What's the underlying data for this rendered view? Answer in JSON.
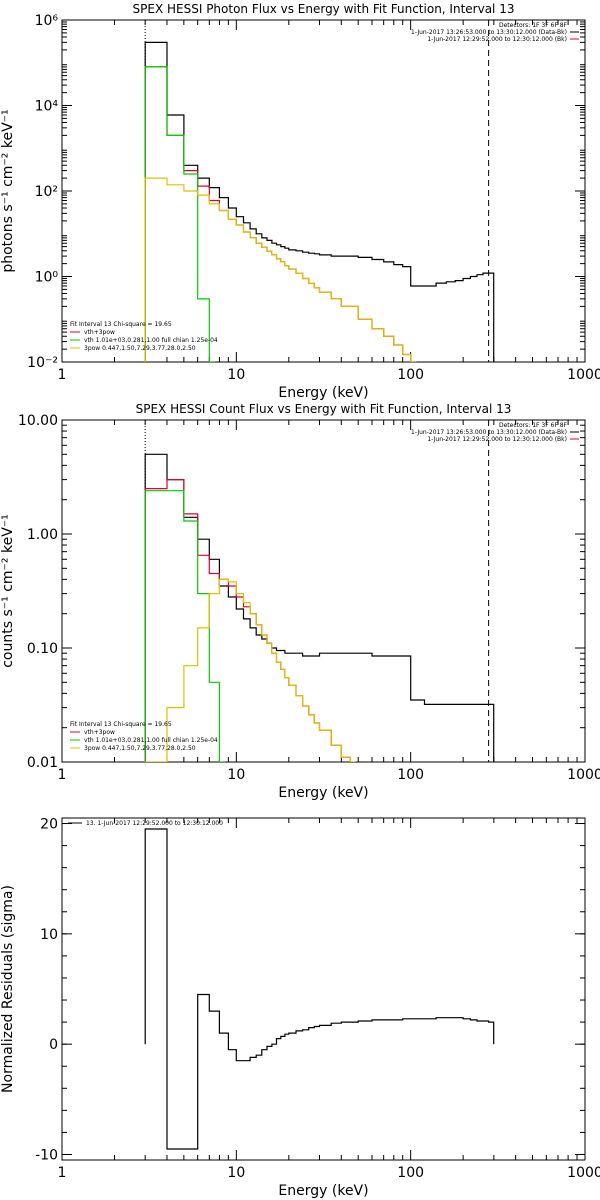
{
  "chart_data": [
    {
      "id": "photon",
      "type": "line",
      "title": "SPEX HESSI Photon Flux vs Energy with Fit Function, Interval 13",
      "xlabel": "Energy (keV)",
      "ylabel": "photons s⁻¹ cm⁻² keV⁻¹",
      "xscale": "log",
      "yscale": "log",
      "xlim": [
        1,
        1000
      ],
      "ylim": [
        0.01,
        1000000
      ],
      "xticks": [
        {
          "v": 1,
          "label": "1"
        },
        {
          "v": 10,
          "label": "10"
        },
        {
          "v": 100,
          "label": "100"
        },
        {
          "v": 1000,
          "label": "1000"
        }
      ],
      "yticks": [
        {
          "v": 0.01,
          "label": "10⁻²"
        },
        {
          "v": 1,
          "label": "10⁰"
        },
        {
          "v": 100,
          "label": "10²"
        },
        {
          "v": 10000,
          "label": "10⁴"
        },
        {
          "v": 1000000,
          "label": "10⁶"
        }
      ],
      "vlines": [
        {
          "x": 3.0,
          "style": "dotted"
        },
        {
          "x": 280,
          "style": "dashed"
        }
      ],
      "legend_top": [
        "Detectors: 1F 3F 6F 8F",
        "1-Jun-2017 13:26:53.000 to 13:30:12.000 (Data-Bk)",
        "1-Jun-2017 12:29:52.000 to 12:30:12.000 (Bk)"
      ],
      "legend_top_colors": [
        "#000000",
        "#000000",
        "#e0002e"
      ],
      "legend_bottom_header": "Fit Interval 13   Chi-square = 19.65",
      "legend_bottom": [
        {
          "label": "vth+3pow",
          "color": "#e0002e"
        },
        {
          "label": "vth 1.01e+03,0.281,1.00  full chian 1.25e-04",
          "color": "#00cc00"
        },
        {
          "label": "3pow 0.447,1.50,7.29,3.77,28.0,2.50",
          "color": "#e0c000"
        }
      ],
      "series": [
        {
          "color": "#000000",
          "x": [
            3.0,
            4.0,
            5.0,
            6.0,
            7.0,
            8.0,
            9.0,
            10,
            11,
            12,
            13,
            14,
            15,
            16,
            17,
            18,
            19,
            20,
            22,
            24,
            26,
            28,
            30,
            35,
            40,
            50,
            60,
            70,
            80,
            90,
            100,
            120,
            140,
            160,
            180,
            200,
            220,
            240,
            260,
            280
          ],
          "y": [
            300000,
            6000,
            400,
            200,
            120,
            70,
            40,
            25,
            18,
            13,
            10,
            8,
            7,
            6,
            5.5,
            5,
            4.6,
            4.2,
            4,
            3.7,
            3.5,
            3.4,
            3.2,
            3.0,
            3.0,
            2.8,
            2.5,
            2.2,
            1.9,
            1.7,
            0.6,
            0.6,
            0.7,
            0.75,
            0.8,
            0.9,
            1.0,
            1.1,
            1.2,
            1.2
          ]
        },
        {
          "color": "#e0002e",
          "x": [
            3.0,
            4.0,
            5.0,
            6.0,
            7.0,
            8.0,
            9.0,
            10,
            11,
            12,
            13,
            14,
            15,
            16,
            17,
            18,
            19,
            20,
            22,
            24,
            26,
            28,
            30,
            35,
            40,
            50,
            60,
            70,
            80,
            90,
            100
          ],
          "y": [
            80000,
            2000,
            300,
            130,
            60,
            35,
            22,
            16,
            11,
            8,
            6,
            4.8,
            3.9,
            3.2,
            2.6,
            2.2,
            1.8,
            1.5,
            1.2,
            0.9,
            0.7,
            0.55,
            0.43,
            0.3,
            0.2,
            0.1,
            0.06,
            0.04,
            0.025,
            0.015,
            0.01
          ]
        },
        {
          "color": "#00cc00",
          "x": [
            3.0,
            4.0,
            5.0,
            6.0,
            7.0
          ],
          "y": [
            80000,
            2000,
            250,
            0.3,
            0.01
          ]
        },
        {
          "color": "#e0c000",
          "x": [
            3.0,
            4.0,
            5.0,
            6.0,
            7.0,
            8.0,
            9.0,
            10,
            11,
            12,
            13,
            14,
            15,
            16,
            17,
            18,
            19,
            20,
            22,
            24,
            26,
            28,
            30,
            35,
            40,
            50,
            60,
            70,
            80,
            90,
            100
          ],
          "y": [
            200,
            140,
            100,
            80,
            50,
            35,
            22,
            16,
            11,
            8,
            6,
            4.8,
            3.9,
            3.2,
            2.6,
            2.2,
            1.8,
            1.5,
            1.2,
            0.9,
            0.7,
            0.55,
            0.43,
            0.3,
            0.2,
            0.1,
            0.06,
            0.04,
            0.025,
            0.015,
            0.01
          ]
        }
      ]
    },
    {
      "id": "count",
      "type": "line",
      "title": "SPEX HESSI Count Flux vs Energy with Fit Function, Interval 13",
      "xlabel": "Energy (keV)",
      "ylabel": "counts s⁻¹ cm⁻² keV⁻¹",
      "xscale": "log",
      "yscale": "log",
      "xlim": [
        1,
        1000
      ],
      "ylim": [
        0.01,
        10
      ],
      "xticks": [
        {
          "v": 1,
          "label": "1"
        },
        {
          "v": 10,
          "label": "10"
        },
        {
          "v": 100,
          "label": "100"
        },
        {
          "v": 1000,
          "label": "1000"
        }
      ],
      "yticks": [
        {
          "v": 0.01,
          "label": "0.01"
        },
        {
          "v": 0.1,
          "label": "0.10"
        },
        {
          "v": 1,
          "label": "1.00"
        },
        {
          "v": 10,
          "label": "10.00"
        }
      ],
      "vlines": [
        {
          "x": 3.0,
          "style": "dotted"
        },
        {
          "x": 280,
          "style": "dashed"
        }
      ],
      "legend_top": [
        "Detectors: 1F 3F 6F 8F",
        "1-Jun-2017 13:26:53.000 to 13:30:12.000 (Data-Bk)",
        "1-Jun-2017 12:29:52.000 to 12:30:12.000 (Bk)"
      ],
      "legend_top_colors": [
        "#000000",
        "#000000",
        "#e0002e"
      ],
      "legend_bottom_header": "Fit Interval 13   Chi-square = 19.65",
      "legend_bottom": [
        {
          "label": "vth+3pow",
          "color": "#e0002e"
        },
        {
          "label": "vth 1.01e+03,0.281,1.00  full chian 1.25e-04",
          "color": "#00cc00"
        },
        {
          "label": "3pow 0.447,1.50,7.29,3.77,28.0,2.50",
          "color": "#e0c000"
        }
      ],
      "series": [
        {
          "color": "#000000",
          "x": [
            3.0,
            4.0,
            5.0,
            6.0,
            7.0,
            8.0,
            9.0,
            10,
            11,
            12,
            13,
            14,
            15,
            16,
            17,
            18,
            19,
            20,
            22,
            24,
            26,
            28,
            30,
            35,
            40,
            50,
            60,
            70,
            80,
            90,
            100,
            120,
            140,
            160,
            180,
            200,
            220,
            240,
            260,
            280
          ],
          "y": [
            5.0,
            3.0,
            1.4,
            0.9,
            0.6,
            0.35,
            0.28,
            0.22,
            0.18,
            0.15,
            0.13,
            0.12,
            0.11,
            0.1,
            0.095,
            0.095,
            0.09,
            0.09,
            0.09,
            0.085,
            0.085,
            0.085,
            0.09,
            0.09,
            0.09,
            0.09,
            0.085,
            0.085,
            0.085,
            0.085,
            0.035,
            0.032,
            0.032,
            0.032,
            0.032,
            0.032,
            0.032,
            0.032,
            0.032,
            0.032
          ]
        },
        {
          "color": "#e0002e",
          "x": [
            3.0,
            4.0,
            5.0,
            6.0,
            7.0,
            8.0,
            9.0,
            10,
            11,
            12,
            13,
            14,
            15,
            16,
            17,
            18,
            19,
            20,
            22,
            24,
            26,
            28,
            30,
            35,
            40,
            45
          ],
          "y": [
            2.5,
            3.0,
            1.5,
            0.65,
            0.45,
            0.4,
            0.35,
            0.28,
            0.23,
            0.2,
            0.16,
            0.13,
            0.11,
            0.09,
            0.075,
            0.065,
            0.055,
            0.047,
            0.038,
            0.031,
            0.026,
            0.022,
            0.019,
            0.014,
            0.011,
            0.01
          ]
        },
        {
          "color": "#00cc00",
          "x": [
            3.0,
            4.0,
            5.0,
            6.0,
            7.0,
            8.0
          ],
          "y": [
            2.4,
            2.4,
            1.3,
            0.3,
            0.05,
            0.01
          ]
        },
        {
          "color": "#e0c000",
          "x": [
            3.0,
            4.0,
            5.0,
            6.0,
            7.0,
            8.0,
            9.0,
            10,
            11,
            12,
            13,
            14,
            15,
            16,
            17,
            18,
            19,
            20,
            22,
            24,
            26,
            28,
            30,
            35,
            40,
            45
          ],
          "y": [
            0.01,
            0.03,
            0.07,
            0.15,
            0.3,
            0.4,
            0.38,
            0.3,
            0.25,
            0.2,
            0.16,
            0.13,
            0.11,
            0.09,
            0.075,
            0.065,
            0.055,
            0.047,
            0.038,
            0.031,
            0.026,
            0.022,
            0.019,
            0.014,
            0.011,
            0.01
          ]
        }
      ]
    },
    {
      "id": "resid",
      "type": "line",
      "title": "",
      "xlabel": "Energy (keV)",
      "ylabel": "Normalized Residuals (sigma)",
      "xscale": "log",
      "yscale": "linear",
      "xlim": [
        1,
        1000
      ],
      "ylim": [
        -10.5,
        20.5
      ],
      "xticks": [
        {
          "v": 1,
          "label": "1"
        },
        {
          "v": 10,
          "label": "10"
        },
        {
          "v": 100,
          "label": "100"
        },
        {
          "v": 1000,
          "label": "1000"
        }
      ],
      "yticks": [
        {
          "v": -10,
          "label": "-10"
        },
        {
          "v": 0,
          "label": "0"
        },
        {
          "v": 10,
          "label": "10"
        },
        {
          "v": 20,
          "label": "20"
        }
      ],
      "vlines": [],
      "legend_top": [
        "13.   1-Jun-2017 12:29:52.000 to 12:30:12.000"
      ],
      "legend_top_colors": [
        "#000000"
      ],
      "legend_bottom_header": "",
      "legend_bottom": [],
      "series": [
        {
          "color": "#000000",
          "x": [
            3.0,
            4.0,
            5.0,
            6.0,
            7.0,
            8.0,
            9.0,
            10,
            11,
            12,
            13,
            14,
            15,
            16,
            17,
            18,
            19,
            20,
            22,
            24,
            26,
            28,
            30,
            35,
            40,
            50,
            60,
            70,
            80,
            90,
            100,
            120,
            140,
            160,
            180,
            200,
            220,
            240,
            260,
            280
          ],
          "y": [
            19.5,
            -9.5,
            -9.5,
            4.5,
            3.0,
            1.0,
            -0.5,
            -1.5,
            -1.5,
            -1.2,
            -1.0,
            -0.5,
            -0.2,
            0.0,
            0.5,
            0.7,
            0.9,
            1.0,
            1.2,
            1.3,
            1.5,
            1.6,
            1.7,
            1.9,
            2.0,
            2.1,
            2.2,
            2.2,
            2.2,
            2.3,
            2.3,
            2.3,
            2.4,
            2.4,
            2.4,
            2.3,
            2.2,
            2.1,
            2.1,
            2.0
          ]
        }
      ]
    }
  ]
}
